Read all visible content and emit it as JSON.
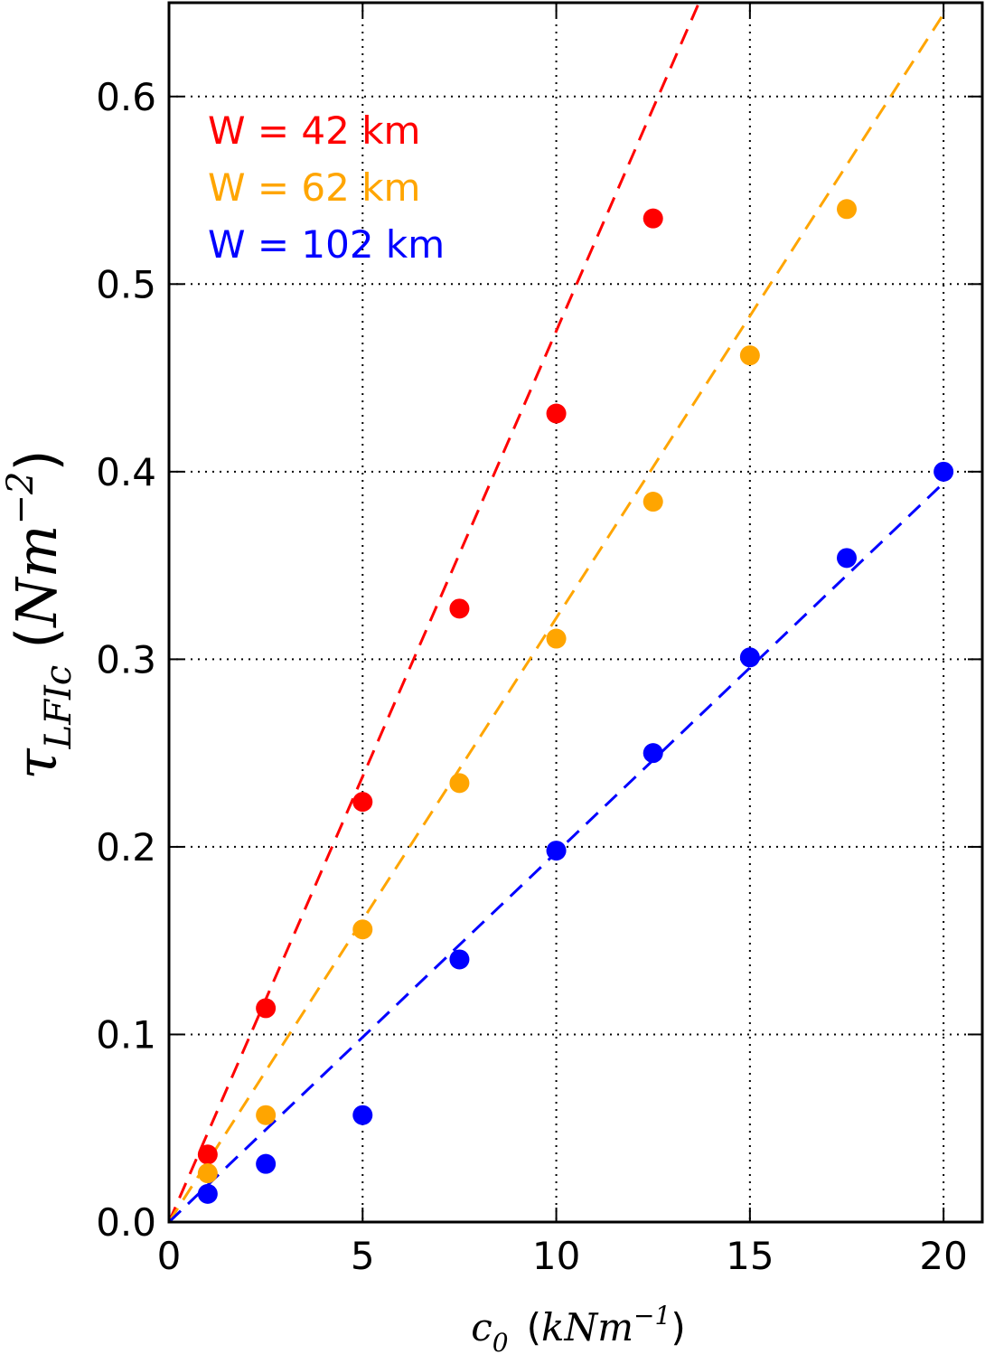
{
  "chart_data": {
    "type": "scatter",
    "xlabel": {
      "base": "c",
      "sub": "0",
      "unit_open": "(",
      "unit_main": "kNm",
      "unit_sup": "−1",
      "unit_close": ")"
    },
    "ylabel": {
      "base": "τ",
      "sub": "LFIc",
      "unit_open": "(",
      "unit_main": "Nm",
      "unit_sup": "−2",
      "unit_close": ")"
    },
    "xlim": [
      0,
      21
    ],
    "ylim": [
      0.0,
      0.65
    ],
    "xticks": [
      0,
      5,
      10,
      15,
      20
    ],
    "xtick_labels": [
      "0",
      "5",
      "10",
      "15",
      "20"
    ],
    "yticks": [
      0.0,
      0.1,
      0.2,
      0.3,
      0.4,
      0.5,
      0.6
    ],
    "ytick_labels": [
      "0.0",
      "0.1",
      "0.2",
      "0.3",
      "0.4",
      "0.5",
      "0.6"
    ],
    "grid": true,
    "legend_position": "top-left",
    "series": [
      {
        "name": "W = 42 km",
        "color": "#ff0000",
        "x": [
          1,
          2.5,
          5,
          7.5,
          10,
          12.5
        ],
        "y": [
          0.036,
          0.114,
          0.224,
          0.327,
          0.431,
          0.535
        ],
        "fit_slope": 0.0475
      },
      {
        "name": "W = 62 km",
        "color": "#ffa500",
        "x": [
          1,
          2.5,
          5,
          7.5,
          10,
          12.5,
          15,
          17.5
        ],
        "y": [
          0.026,
          0.057,
          0.156,
          0.234,
          0.311,
          0.384,
          0.462,
          0.54
        ],
        "fit_slope": 0.0322
      },
      {
        "name": "W = 102 km",
        "color": "#0000ff",
        "x": [
          1,
          2.5,
          5,
          7.5,
          10,
          12.5,
          15,
          17.5,
          20
        ],
        "y": [
          0.015,
          0.031,
          0.057,
          0.14,
          0.198,
          0.25,
          0.301,
          0.354,
          0.4
        ],
        "fit_slope": 0.0197
      }
    ]
  }
}
